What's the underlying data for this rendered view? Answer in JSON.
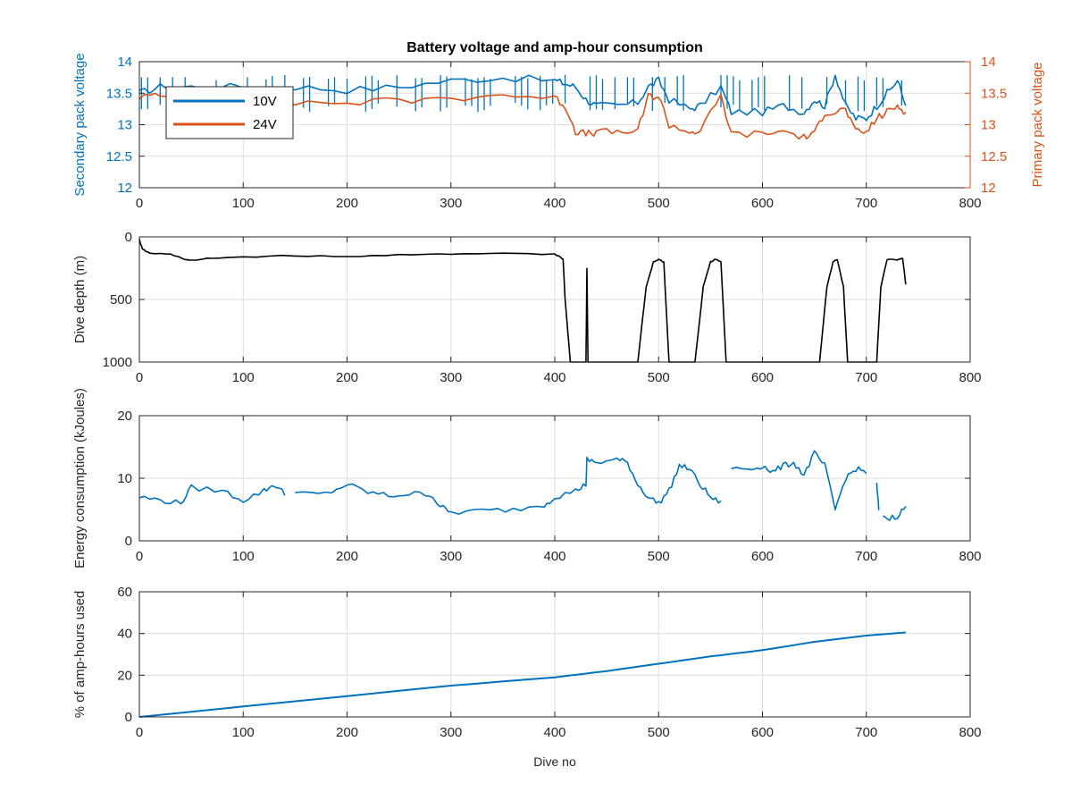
{
  "figure": {
    "title": "Battery voltage and amp-hour consumption",
    "xlabel": "Dive no",
    "colors": {
      "blue": "#0072BD",
      "orange": "#D95319",
      "black": "#000000",
      "grid": "#dedede",
      "axes": "#262626"
    }
  },
  "chart_data": [
    {
      "type": "line",
      "ylabel": "Secondary pack voltage",
      "ylabel_right": "Primary pack voltage",
      "xlim": [
        0,
        800
      ],
      "ylim": [
        12,
        14
      ],
      "ylim_right": [
        12,
        14
      ],
      "xticks": [
        0,
        100,
        200,
        300,
        400,
        500,
        600,
        700,
        800
      ],
      "yticks": [
        12,
        12.5,
        13,
        13.5,
        14
      ],
      "yticks_right": [
        12,
        12.5,
        13,
        13.5,
        14
      ],
      "grid": true,
      "legend": "top-left",
      "series": [
        {
          "name": "10V",
          "color": "#0072BD",
          "axis": "left",
          "x": [
            0,
            20,
            50,
            100,
            150,
            200,
            250,
            300,
            350,
            400,
            410,
            420,
            430,
            440,
            460,
            480,
            490,
            500,
            510,
            530,
            540,
            560,
            570,
            600,
            620,
            640,
            650,
            660,
            670,
            680,
            690,
            700,
            710,
            720,
            730,
            738
          ],
          "y": [
            13.5,
            13.6,
            13.6,
            13.6,
            13.6,
            13.55,
            13.6,
            13.7,
            13.75,
            13.7,
            13.65,
            13.6,
            13.4,
            13.3,
            13.3,
            13.35,
            13.6,
            13.7,
            13.4,
            13.25,
            13.3,
            13.6,
            13.2,
            13.2,
            13.3,
            13.2,
            13.4,
            13.3,
            13.8,
            13.3,
            13.1,
            13.1,
            13.3,
            13.5,
            13.7,
            13.3
          ],
          "spikes": [
            13.2,
            13.8
          ]
        },
        {
          "name": "24V",
          "color": "#D95319",
          "axis": "right",
          "x": [
            0,
            20,
            50,
            100,
            150,
            200,
            250,
            300,
            350,
            400,
            410,
            420,
            430,
            440,
            460,
            480,
            490,
            500,
            510,
            530,
            540,
            560,
            570,
            600,
            620,
            640,
            650,
            660,
            670,
            680,
            690,
            700,
            710,
            720,
            730,
            738
          ],
          "y": [
            13.45,
            13.45,
            13.4,
            13.4,
            13.35,
            13.35,
            13.38,
            13.42,
            13.48,
            13.42,
            13.3,
            12.9,
            12.85,
            12.88,
            12.88,
            12.9,
            13.45,
            13.45,
            13.0,
            12.88,
            12.9,
            13.45,
            12.85,
            12.85,
            12.9,
            12.8,
            12.85,
            13.2,
            13.2,
            13.25,
            12.88,
            12.88,
            13.1,
            13.2,
            13.3,
            13.2
          ]
        }
      ]
    },
    {
      "type": "line",
      "ylabel": "Dive depth (m)",
      "xlim": [
        0,
        800
      ],
      "ylim": [
        0,
        1000
      ],
      "y_reversed": true,
      "xticks": [
        0,
        100,
        200,
        300,
        400,
        500,
        600,
        700,
        800
      ],
      "yticks": [
        0,
        500,
        1000
      ],
      "grid": true,
      "series": [
        {
          "color": "#000000",
          "x": [
            0,
            3,
            10,
            30,
            45,
            50,
            70,
            100,
            150,
            200,
            250,
            300,
            350,
            400,
            405,
            408,
            410,
            415,
            430,
            431,
            432,
            435,
            480,
            488,
            495,
            500,
            505,
            510,
            535,
            543,
            550,
            555,
            560,
            565,
            655,
            662,
            668,
            672,
            678,
            682,
            710,
            714,
            720,
            730,
            735,
            738
          ],
          "y": [
            20,
            100,
            130,
            140,
            180,
            190,
            170,
            160,
            150,
            160,
            140,
            140,
            130,
            140,
            160,
            180,
            500,
            1000,
            1000,
            250,
            1000,
            1000,
            1000,
            400,
            200,
            180,
            200,
            1000,
            1000,
            400,
            200,
            180,
            200,
            1000,
            1000,
            400,
            200,
            180,
            400,
            1000,
            1000,
            400,
            180,
            180,
            170,
            380
          ]
        }
      ]
    },
    {
      "type": "line",
      "ylabel": "Energy consumption (kJoules)",
      "xlim": [
        0,
        800
      ],
      "ylim": [
        0,
        20
      ],
      "xticks": [
        0,
        100,
        200,
        300,
        400,
        500,
        600,
        700,
        800
      ],
      "yticks": [
        0,
        10,
        20
      ],
      "grid": true,
      "series": [
        {
          "color": "#0072BD",
          "x": [
            0,
            20,
            40,
            50,
            80,
            100,
            120,
            130,
            140,
            150,
            180,
            200,
            220,
            240,
            260,
            280,
            290,
            300,
            330,
            360,
            390,
            400,
            420,
            430,
            431,
            440,
            460,
            470,
            480,
            490,
            500,
            510,
            520,
            530,
            540,
            550,
            560,
            570,
            590,
            600,
            610,
            620,
            630,
            640,
            650,
            660,
            670,
            680,
            690,
            700,
            710,
            712,
            720,
            730,
            738
          ],
          "y": [
            7,
            6.5,
            6,
            8.5,
            8,
            6.5,
            8,
            9,
            7.5,
            7.5,
            7.5,
            9,
            7.8,
            7.2,
            7.5,
            7.5,
            5.5,
            4.5,
            4.8,
            5.0,
            5.8,
            7,
            8,
            9,
            13,
            12.5,
            13,
            12.5,
            9,
            7,
            6,
            8,
            12,
            11.5,
            9,
            7,
            6,
            11.5,
            11.5,
            12,
            11,
            12,
            12.5,
            10.5,
            14,
            12,
            5,
            10,
            11.5,
            11,
            9,
            5,
            3.5,
            4,
            5.5
          ],
          "gaps": [
            [
              140,
              148
            ],
            [
              560,
              568
            ],
            [
              700,
              708
            ],
            [
              712,
              716
            ]
          ]
        }
      ]
    },
    {
      "type": "line",
      "ylabel": "% of amp-hours used",
      "xlim": [
        0,
        800
      ],
      "ylim": [
        0,
        60
      ],
      "xticks": [
        0,
        100,
        200,
        300,
        400,
        500,
        600,
        700,
        800
      ],
      "yticks": [
        0,
        20,
        40,
        60
      ],
      "grid": true,
      "series": [
        {
          "color": "#0072BD",
          "x": [
            0,
            100,
            200,
            300,
            400,
            450,
            500,
            550,
            600,
            650,
            700,
            738
          ],
          "y": [
            0,
            5,
            10,
            15,
            19,
            22,
            25.5,
            29,
            32,
            36,
            39,
            40.5
          ]
        }
      ]
    }
  ]
}
